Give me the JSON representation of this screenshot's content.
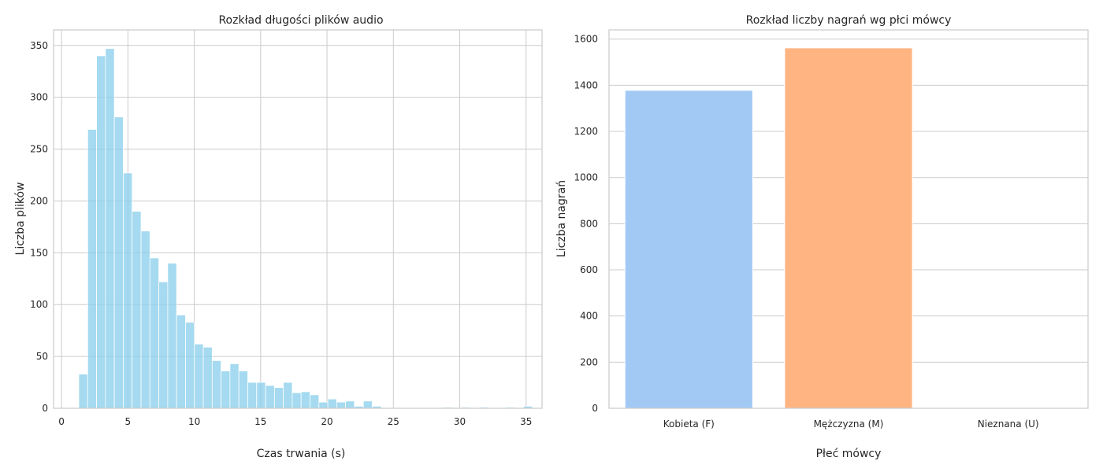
{
  "chart_data": [
    {
      "type": "bar",
      "subtype": "histogram",
      "title": "Rozkład długości plików audio",
      "xlabel": "Czas trwania (s)",
      "ylabel": "Liczba plików",
      "xlim": [
        -0.6,
        36.2
      ],
      "ylim": [
        0,
        365
      ],
      "xticks": [
        0,
        5,
        10,
        15,
        20,
        25,
        30,
        35
      ],
      "yticks": [
        0,
        50,
        100,
        150,
        200,
        250,
        300,
        350
      ],
      "bin_start": 1.3,
      "bin_width": 0.67,
      "counts": [
        33,
        269,
        340,
        347,
        281,
        227,
        190,
        171,
        145,
        122,
        140,
        90,
        83,
        62,
        59,
        46,
        36,
        43,
        36,
        25,
        25,
        22,
        20,
        25,
        15,
        16,
        13,
        6,
        9,
        6,
        7,
        2,
        7,
        2,
        0,
        0,
        0,
        0,
        0,
        0,
        0,
        1,
        0,
        1,
        0,
        1,
        0,
        0,
        1,
        0,
        2
      ],
      "color": "#87ceeb",
      "grid": true
    },
    {
      "type": "bar",
      "title": "Rozkład liczby nagrań wg płci mówcy",
      "xlabel": "Płeć mówcy",
      "ylabel": "Liczba nagrań",
      "categories": [
        "Kobieta (F)",
        "Mężczyzna (M)",
        "Nieznana (U)"
      ],
      "values": [
        1378,
        1562,
        0
      ],
      "ylim": [
        0,
        1640
      ],
      "yticks": [
        0,
        200,
        400,
        600,
        800,
        1000,
        1200,
        1400,
        1600
      ],
      "colors": [
        "#a1c9f4",
        "#ffb482",
        "#8de5a1"
      ],
      "grid": true
    }
  ]
}
